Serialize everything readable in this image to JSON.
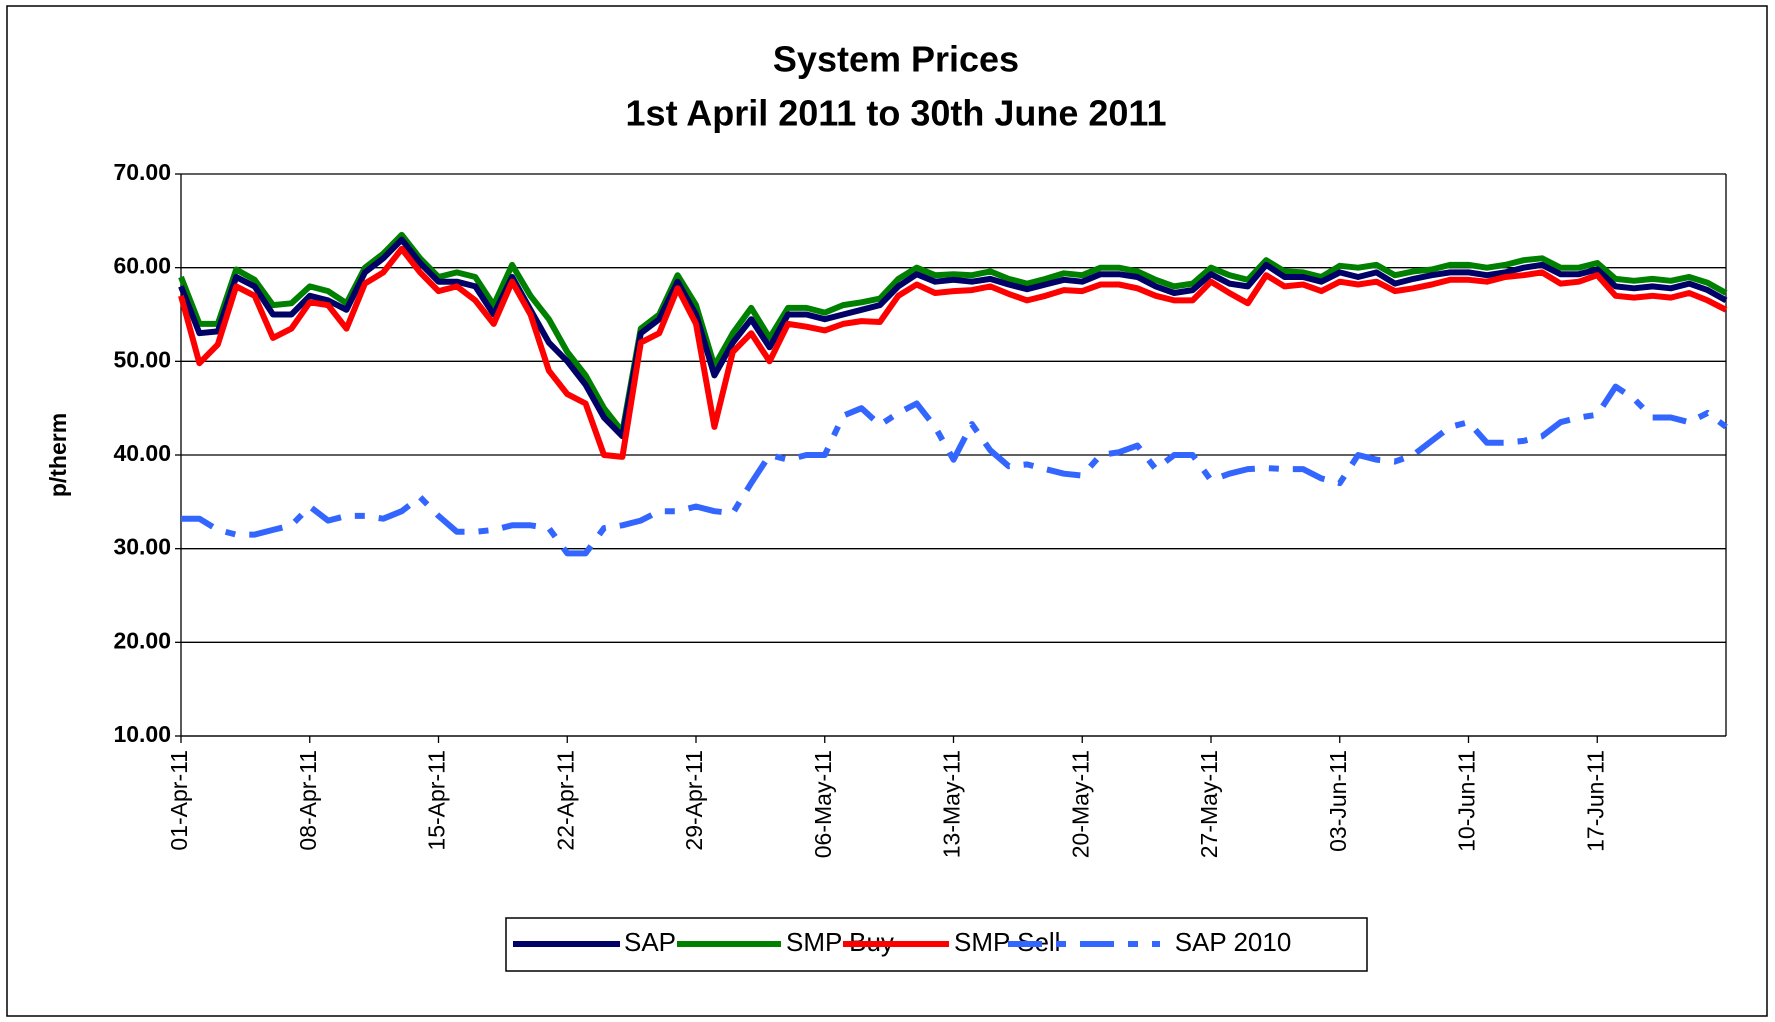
{
  "chart_data": {
    "type": "line",
    "title": "System Prices",
    "subtitle": "1st April 2011 to 30th June 2011",
    "y_label": "p/therm",
    "categories": [
      "01-Apr-11",
      null,
      null,
      null,
      null,
      null,
      null,
      "08-Apr-11",
      null,
      null,
      null,
      null,
      null,
      null,
      "15-Apr-11",
      null,
      null,
      null,
      null,
      null,
      null,
      "22-Apr-11",
      null,
      null,
      null,
      null,
      null,
      null,
      "29-Apr-11",
      null,
      null,
      null,
      null,
      null,
      null,
      "06-May-11",
      null,
      null,
      null,
      null,
      null,
      null,
      "13-May-11",
      null,
      null,
      null,
      null,
      null,
      null,
      "20-May-11",
      null,
      null,
      null,
      null,
      null,
      null,
      "27-May-11",
      null,
      null,
      null,
      null,
      null,
      null,
      "03-Jun-11",
      null,
      null,
      null,
      null,
      null,
      null,
      "10-Jun-11",
      null,
      null,
      null,
      null,
      null,
      null,
      "17-Jun-11",
      null,
      null,
      null,
      null,
      null,
      null,
      null
    ],
    "series": [
      {
        "name": "SAP",
        "color": "#000066",
        "values": [
          58,
          53,
          53.2,
          59,
          58,
          55,
          55,
          57,
          56.5,
          55.5,
          59.5,
          61,
          63,
          60.5,
          58.5,
          58.5,
          58,
          55,
          59,
          55.5,
          52,
          50,
          47.5,
          44,
          42,
          53,
          54.5,
          58.5,
          55,
          48.5,
          52,
          54.5,
          51.5,
          55,
          55,
          54.5,
          55,
          55.5,
          56,
          58,
          59.3,
          58.5,
          58.7,
          58.5,
          58.8,
          58.2,
          57.7,
          58.2,
          58.7,
          58.5,
          59.3,
          59.3,
          59,
          58,
          57.3,
          57.6,
          59.3,
          58.3,
          58,
          60.3,
          59,
          59,
          58.5,
          59.5,
          59,
          59.5,
          58.3,
          58.8,
          59.2,
          59.5,
          59.5,
          59.2,
          59.5,
          60,
          60.3,
          59.3,
          59.3,
          59.8,
          58,
          57.8,
          58,
          57.8,
          58.3,
          57.6,
          56.5
        ]
      },
      {
        "name": "SMP Buy",
        "color": "#008000",
        "values": [
          59,
          54,
          54,
          59.8,
          58.7,
          56,
          56.2,
          58,
          57.5,
          56.2,
          60,
          61.5,
          63.5,
          61,
          59,
          59.5,
          59,
          56,
          60.3,
          57,
          54.5,
          51,
          48.5,
          45,
          42.5,
          53.5,
          55,
          59.2,
          56,
          49.5,
          53,
          55.7,
          52.5,
          55.7,
          55.7,
          55.2,
          56,
          56.3,
          56.7,
          58.8,
          60,
          59.2,
          59.3,
          59.2,
          59.6,
          58.8,
          58.3,
          58.8,
          59.4,
          59.2,
          60,
          60,
          59.6,
          58.7,
          58,
          58.3,
          60,
          59.2,
          58.7,
          60.8,
          59.6,
          59.5,
          59,
          60.2,
          60,
          60.3,
          59.2,
          59.6,
          59.8,
          60.3,
          60.3,
          60,
          60.3,
          60.8,
          61,
          60,
          60,
          60.5,
          58.8,
          58.6,
          58.8,
          58.6,
          59,
          58.4,
          57.3
        ]
      },
      {
        "name": "SMP Sell",
        "color": "#ff0000",
        "values": [
          57,
          49.8,
          51.8,
          58,
          57,
          52.5,
          53.5,
          56.3,
          56,
          53.5,
          58.3,
          59.5,
          62,
          59.5,
          57.5,
          58,
          56.5,
          54,
          58.5,
          55,
          49,
          46.5,
          45.5,
          40,
          39.8,
          52,
          53,
          57.8,
          54,
          43,
          51,
          53,
          50,
          54,
          53.7,
          53.3,
          54,
          54.3,
          54.2,
          57,
          58.2,
          57.3,
          57.5,
          57.6,
          58,
          57.2,
          56.5,
          57,
          57.6,
          57.5,
          58.2,
          58.2,
          57.8,
          57,
          56.5,
          56.5,
          58.5,
          57.3,
          56.2,
          59.2,
          58,
          58.2,
          57.5,
          58.5,
          58.2,
          58.5,
          57.5,
          57.8,
          58.2,
          58.7,
          58.7,
          58.5,
          59,
          59.2,
          59.5,
          58.3,
          58.5,
          59.2,
          57,
          56.8,
          57,
          56.8,
          57.3,
          56.5,
          55.5
        ]
      },
      {
        "name": "SAP 2010",
        "color": "#3366ff",
        "dashed": true,
        "values": [
          33.2,
          33.2,
          32,
          31.5,
          31.5,
          32,
          32.5,
          34.5,
          33,
          33.5,
          33.5,
          33.2,
          34,
          35.5,
          33.5,
          31.8,
          31.8,
          32,
          32.5,
          32.5,
          32.2,
          29.5,
          29.5,
          32.2,
          32.5,
          33,
          34,
          34,
          34.5,
          34,
          33.8,
          37,
          40,
          39.5,
          40,
          40,
          44.2,
          45,
          43.2,
          44.5,
          45.5,
          43,
          39.5,
          43.3,
          40.5,
          38.8,
          39,
          38.5,
          38,
          37.8,
          40,
          40.3,
          41,
          38.5,
          40,
          40,
          37.3,
          38,
          38.5,
          38.6,
          38.5,
          38.5,
          37.5,
          37,
          40,
          39.5,
          39.3,
          40,
          41.5,
          43,
          43.5,
          41.3,
          41.3,
          41.5,
          42,
          43.5,
          44,
          44.3,
          47.3,
          46,
          44,
          44,
          43.5,
          44.5,
          43
        ]
      }
    ],
    "ylim": [
      10,
      70
    ],
    "yticks": [
      {
        "value": 10,
        "label": "10.00"
      },
      {
        "value": 20,
        "label": "20.00"
      },
      {
        "value": 30,
        "label": "30.00"
      },
      {
        "value": 40,
        "label": "40.00"
      },
      {
        "value": 50,
        "label": "50.00"
      },
      {
        "value": 60,
        "label": "60.00"
      },
      {
        "value": 70,
        "label": "70.00"
      }
    ],
    "grid": true,
    "legend": "bottom"
  }
}
